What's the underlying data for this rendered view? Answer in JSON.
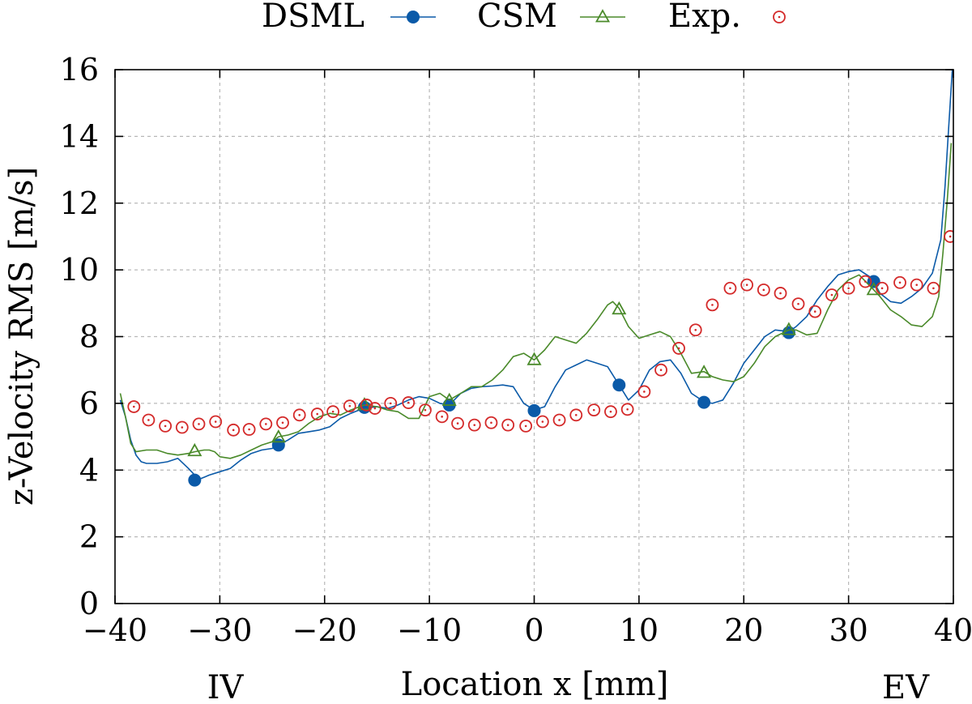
{
  "chart_data": {
    "type": "line",
    "title": "",
    "xlabel": "Location x [mm]",
    "ylabel": "z-Velocity RMS [m/s]",
    "xlim": [
      -40,
      40
    ],
    "ylim": [
      0,
      16
    ],
    "xticks": [
      -40,
      -30,
      -20,
      -10,
      0,
      10,
      20,
      30,
      40
    ],
    "xtick_labels": [
      "−40",
      "−30",
      "−20",
      "−10",
      "0",
      "10",
      "20",
      "30",
      "40"
    ],
    "yticks": [
      0,
      2,
      4,
      6,
      8,
      10,
      12,
      14,
      16
    ],
    "ytick_labels": [
      "0",
      "2",
      "4",
      "6",
      "8",
      "10",
      "12",
      "14",
      "16"
    ],
    "grid": true,
    "legend_position": "top-center",
    "end_labels": {
      "left": "IV",
      "right": "EV"
    },
    "series": [
      {
        "name": "DSML",
        "color": "#0b5aa8",
        "marker": "filled-circle",
        "line": [
          [
            -39.5,
            6.1
          ],
          [
            -39.0,
            5.6
          ],
          [
            -38.5,
            4.9
          ],
          [
            -38.0,
            4.45
          ],
          [
            -37.5,
            4.25
          ],
          [
            -37.0,
            4.2
          ],
          [
            -36.0,
            4.2
          ],
          [
            -35.0,
            4.25
          ],
          [
            -34.0,
            4.35
          ],
          [
            -33.0,
            4.05
          ],
          [
            -32.0,
            3.72
          ],
          [
            -31.0,
            3.85
          ],
          [
            -30.0,
            3.95
          ],
          [
            -29.0,
            4.05
          ],
          [
            -28.0,
            4.3
          ],
          [
            -27.0,
            4.5
          ],
          [
            -26.0,
            4.6
          ],
          [
            -25.0,
            4.65
          ],
          [
            -24.4,
            4.75
          ],
          [
            -23.5,
            4.9
          ],
          [
            -22.5,
            5.1
          ],
          [
            -21.5,
            5.15
          ],
          [
            -20.5,
            5.2
          ],
          [
            -19.5,
            5.3
          ],
          [
            -18.5,
            5.55
          ],
          [
            -17.5,
            5.7
          ],
          [
            -16.3,
            5.85
          ],
          [
            -15.0,
            5.9
          ],
          [
            -14.0,
            5.85
          ],
          [
            -13.0,
            5.95
          ],
          [
            -12.0,
            6.1
          ],
          [
            -11.0,
            6.2
          ],
          [
            -10.0,
            6.15
          ],
          [
            -9.0,
            6.0
          ],
          [
            -8.1,
            5.95
          ],
          [
            -7.0,
            6.3
          ],
          [
            -6.0,
            6.45
          ],
          [
            -5.0,
            6.5
          ],
          [
            -4.0,
            6.52
          ],
          [
            -3.0,
            6.55
          ],
          [
            -2.0,
            6.5
          ],
          [
            -1.0,
            6.0
          ],
          [
            0.0,
            5.8
          ],
          [
            1.0,
            5.9
          ],
          [
            2.0,
            6.5
          ],
          [
            3.0,
            7.0
          ],
          [
            4.0,
            7.15
          ],
          [
            5.0,
            7.3
          ],
          [
            6.0,
            7.2
          ],
          [
            7.0,
            7.1
          ],
          [
            8.1,
            6.55
          ],
          [
            9.0,
            6.1
          ],
          [
            10.0,
            6.4
          ],
          [
            11.0,
            7.0
          ],
          [
            12.0,
            7.25
          ],
          [
            13.0,
            7.3
          ],
          [
            14.0,
            6.9
          ],
          [
            15.0,
            6.3
          ],
          [
            16.2,
            6.05
          ],
          [
            17.0,
            6.0
          ],
          [
            18.0,
            6.1
          ],
          [
            19.0,
            6.6
          ],
          [
            20.0,
            7.2
          ],
          [
            21.0,
            7.6
          ],
          [
            22.0,
            8.0
          ],
          [
            23.0,
            8.2
          ],
          [
            24.3,
            8.15
          ],
          [
            25.0,
            8.3
          ],
          [
            26.0,
            8.6
          ],
          [
            27.0,
            9.1
          ],
          [
            28.0,
            9.5
          ],
          [
            29.0,
            9.85
          ],
          [
            30.0,
            9.95
          ],
          [
            31.0,
            10.0
          ],
          [
            32.0,
            9.8
          ],
          [
            32.4,
            9.65
          ],
          [
            33.0,
            9.3
          ],
          [
            34.0,
            9.05
          ],
          [
            35.0,
            9.0
          ],
          [
            36.0,
            9.2
          ],
          [
            37.0,
            9.45
          ],
          [
            38.0,
            9.9
          ],
          [
            38.8,
            10.9
          ],
          [
            39.2,
            12.5
          ],
          [
            39.6,
            14.5
          ],
          [
            39.9,
            16.0
          ]
        ],
        "markers": [
          [
            -32.4,
            3.7
          ],
          [
            -24.4,
            4.75
          ],
          [
            -16.2,
            5.88
          ],
          [
            -8.1,
            5.95
          ],
          [
            0.0,
            5.78
          ],
          [
            8.1,
            6.55
          ],
          [
            16.2,
            6.03
          ],
          [
            24.3,
            8.12
          ],
          [
            32.4,
            9.65
          ]
        ]
      },
      {
        "name": "CSM",
        "color": "#4a8a2a",
        "marker": "open-triangle",
        "line": [
          [
            -39.5,
            6.3
          ],
          [
            -39.0,
            5.6
          ],
          [
            -38.5,
            4.8
          ],
          [
            -38.0,
            4.55
          ],
          [
            -37.0,
            4.6
          ],
          [
            -36.0,
            4.6
          ],
          [
            -35.0,
            4.5
          ],
          [
            -34.0,
            4.45
          ],
          [
            -33.0,
            4.5
          ],
          [
            -32.4,
            4.55
          ],
          [
            -31.5,
            4.6
          ],
          [
            -31.0,
            4.6
          ],
          [
            -30.5,
            4.55
          ],
          [
            -30.0,
            4.4
          ],
          [
            -29.0,
            4.35
          ],
          [
            -28.0,
            4.45
          ],
          [
            -27.0,
            4.6
          ],
          [
            -26.0,
            4.75
          ],
          [
            -25.0,
            4.85
          ],
          [
            -24.4,
            5.0
          ],
          [
            -23.5,
            5.05
          ],
          [
            -22.5,
            5.15
          ],
          [
            -21.5,
            5.4
          ],
          [
            -20.5,
            5.6
          ],
          [
            -19.5,
            5.7
          ],
          [
            -18.5,
            5.65
          ],
          [
            -17.5,
            5.8
          ],
          [
            -16.2,
            5.95
          ],
          [
            -15.0,
            5.9
          ],
          [
            -14.0,
            5.8
          ],
          [
            -13.0,
            5.75
          ],
          [
            -12.0,
            5.55
          ],
          [
            -11.0,
            5.55
          ],
          [
            -10.0,
            6.2
          ],
          [
            -9.0,
            6.3
          ],
          [
            -8.1,
            6.1
          ],
          [
            -7.0,
            6.3
          ],
          [
            -6.0,
            6.5
          ],
          [
            -5.0,
            6.5
          ],
          [
            -4.0,
            6.7
          ],
          [
            -3.0,
            7.0
          ],
          [
            -2.0,
            7.4
          ],
          [
            -1.0,
            7.5
          ],
          [
            0.0,
            7.3
          ],
          [
            1.0,
            7.6
          ],
          [
            2.0,
            8.0
          ],
          [
            3.0,
            7.9
          ],
          [
            4.0,
            7.8
          ],
          [
            5.0,
            8.1
          ],
          [
            6.0,
            8.5
          ],
          [
            7.0,
            8.95
          ],
          [
            7.5,
            9.05
          ],
          [
            8.1,
            8.85
          ],
          [
            9.0,
            8.3
          ],
          [
            10.0,
            7.95
          ],
          [
            11.0,
            8.05
          ],
          [
            12.0,
            8.15
          ],
          [
            13.0,
            8.0
          ],
          [
            14.0,
            7.5
          ],
          [
            15.0,
            6.9
          ],
          [
            16.2,
            6.95
          ],
          [
            17.0,
            6.8
          ],
          [
            18.0,
            6.7
          ],
          [
            19.0,
            6.65
          ],
          [
            20.0,
            6.8
          ],
          [
            21.0,
            7.2
          ],
          [
            22.0,
            7.7
          ],
          [
            23.0,
            8.0
          ],
          [
            24.3,
            8.2
          ],
          [
            25.0,
            8.2
          ],
          [
            26.0,
            8.05
          ],
          [
            27.0,
            8.1
          ],
          [
            28.0,
            8.8
          ],
          [
            29.0,
            9.4
          ],
          [
            30.0,
            9.7
          ],
          [
            31.0,
            9.85
          ],
          [
            32.4,
            9.4
          ],
          [
            33.0,
            9.2
          ],
          [
            34.0,
            8.8
          ],
          [
            35.0,
            8.6
          ],
          [
            36.0,
            8.35
          ],
          [
            37.0,
            8.3
          ],
          [
            38.0,
            8.6
          ],
          [
            38.6,
            9.2
          ],
          [
            39.0,
            10.5
          ],
          [
            39.4,
            12.0
          ],
          [
            39.8,
            13.8
          ]
        ],
        "markers": [
          [
            -32.4,
            4.57
          ],
          [
            -24.4,
            4.98
          ],
          [
            -16.2,
            5.95
          ],
          [
            -8.1,
            6.08
          ],
          [
            0.0,
            7.3
          ],
          [
            8.1,
            8.82
          ],
          [
            16.2,
            6.92
          ],
          [
            24.3,
            8.2
          ],
          [
            32.4,
            9.4
          ]
        ]
      },
      {
        "name": "Exp.",
        "color": "#d42a2a",
        "marker": "open-circle-dot",
        "points": [
          [
            -38.2,
            5.9
          ],
          [
            -36.8,
            5.5
          ],
          [
            -35.2,
            5.32
          ],
          [
            -33.6,
            5.28
          ],
          [
            -32.0,
            5.38
          ],
          [
            -30.4,
            5.45
          ],
          [
            -28.7,
            5.2
          ],
          [
            -27.2,
            5.22
          ],
          [
            -25.6,
            5.38
          ],
          [
            -24.0,
            5.42
          ],
          [
            -22.4,
            5.65
          ],
          [
            -20.7,
            5.68
          ],
          [
            -19.2,
            5.75
          ],
          [
            -17.6,
            5.92
          ],
          [
            -16.0,
            5.95
          ],
          [
            -15.2,
            5.85
          ],
          [
            -13.7,
            6.0
          ],
          [
            -12.0,
            6.02
          ],
          [
            -10.4,
            5.8
          ],
          [
            -8.8,
            5.6
          ],
          [
            -7.3,
            5.4
          ],
          [
            -5.7,
            5.35
          ],
          [
            -4.1,
            5.42
          ],
          [
            -2.5,
            5.35
          ],
          [
            -0.8,
            5.32
          ],
          [
            0.8,
            5.45
          ],
          [
            2.4,
            5.5
          ],
          [
            4.0,
            5.65
          ],
          [
            5.7,
            5.8
          ],
          [
            7.3,
            5.75
          ],
          [
            8.9,
            5.82
          ],
          [
            10.5,
            6.35
          ],
          [
            12.1,
            7.0
          ],
          [
            13.8,
            7.65
          ],
          [
            15.4,
            8.2
          ],
          [
            17.0,
            8.95
          ],
          [
            18.7,
            9.45
          ],
          [
            20.3,
            9.55
          ],
          [
            21.9,
            9.4
          ],
          [
            23.5,
            9.3
          ],
          [
            25.2,
            8.98
          ],
          [
            26.8,
            8.75
          ],
          [
            28.4,
            9.25
          ],
          [
            30.0,
            9.45
          ],
          [
            31.6,
            9.65
          ],
          [
            33.2,
            9.45
          ],
          [
            34.9,
            9.62
          ],
          [
            36.5,
            9.55
          ],
          [
            38.1,
            9.45
          ],
          [
            39.7,
            11.0
          ]
        ]
      }
    ]
  }
}
